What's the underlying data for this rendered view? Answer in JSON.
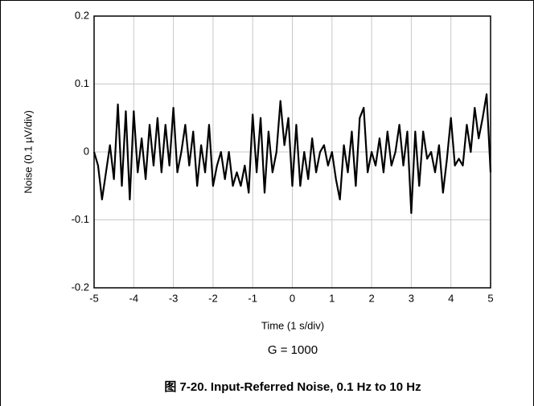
{
  "chart_data": {
    "type": "line",
    "x_label": "Time (1 s/div)",
    "y_label": "Noise (0.1 µV/div)",
    "annotation": "G = 1000",
    "caption": "图 7-20. Input-Referred Noise, 0.1 Hz to 10 Hz",
    "xlim": [
      -5,
      5
    ],
    "xticks": [
      -5,
      -4,
      -3,
      -2,
      -1,
      0,
      1,
      2,
      3,
      4,
      5
    ],
    "ylim": [
      -0.2,
      0.2
    ],
    "yticks": [
      -0.2,
      -0.1,
      0,
      0.1,
      0.2
    ],
    "grid": true,
    "x": [
      -5.0,
      -4.9,
      -4.8,
      -4.7,
      -4.6,
      -4.5,
      -4.4,
      -4.3,
      -4.2,
      -4.1,
      -4.0,
      -3.9,
      -3.8,
      -3.7,
      -3.6,
      -3.5,
      -3.4,
      -3.3,
      -3.2,
      -3.1,
      -3.0,
      -2.9,
      -2.8,
      -2.7,
      -2.6,
      -2.5,
      -2.4,
      -2.3,
      -2.2,
      -2.1,
      -2.0,
      -1.9,
      -1.8,
      -1.7,
      -1.6,
      -1.5,
      -1.4,
      -1.3,
      -1.2,
      -1.1,
      -1.0,
      -0.9,
      -0.8,
      -0.7,
      -0.6,
      -0.5,
      -0.4,
      -0.3,
      -0.2,
      -0.1,
      0.0,
      0.1,
      0.2,
      0.3,
      0.4,
      0.5,
      0.6,
      0.7,
      0.8,
      0.9,
      1.0,
      1.1,
      1.2,
      1.3,
      1.4,
      1.5,
      1.6,
      1.7,
      1.8,
      1.9,
      2.0,
      2.1,
      2.2,
      2.3,
      2.4,
      2.5,
      2.6,
      2.7,
      2.8,
      2.9,
      3.0,
      3.1,
      3.2,
      3.3,
      3.4,
      3.5,
      3.6,
      3.7,
      3.8,
      3.9,
      4.0,
      4.1,
      4.2,
      4.3,
      4.4,
      4.5,
      4.6,
      4.7,
      4.8,
      4.9,
      5.0
    ],
    "series": [
      {
        "color": "#000000",
        "values": [
          0.0,
          -0.02,
          -0.07,
          -0.03,
          0.01,
          -0.04,
          0.07,
          -0.05,
          0.06,
          -0.07,
          0.06,
          -0.03,
          0.02,
          -0.04,
          0.04,
          -0.02,
          0.05,
          -0.03,
          0.04,
          -0.02,
          0.065,
          -0.03,
          0.0,
          0.04,
          -0.02,
          0.03,
          -0.05,
          0.01,
          -0.03,
          0.04,
          -0.05,
          -0.02,
          0.0,
          -0.04,
          0.0,
          -0.05,
          -0.03,
          -0.05,
          -0.02,
          -0.06,
          0.055,
          -0.03,
          0.05,
          -0.06,
          0.03,
          -0.03,
          0.0,
          0.075,
          0.01,
          0.05,
          -0.05,
          0.04,
          -0.05,
          0.0,
          -0.04,
          0.02,
          -0.03,
          0.0,
          0.01,
          -0.02,
          0.0,
          -0.04,
          -0.07,
          0.01,
          -0.03,
          0.03,
          -0.05,
          0.05,
          0.065,
          -0.03,
          0.0,
          -0.02,
          0.02,
          -0.03,
          0.03,
          -0.02,
          0.0,
          0.04,
          -0.02,
          0.03,
          -0.09,
          0.03,
          -0.05,
          0.03,
          -0.01,
          0.0,
          -0.03,
          0.01,
          -0.06,
          -0.01,
          0.05,
          -0.02,
          -0.01,
          -0.02,
          0.04,
          0.0,
          0.065,
          0.02,
          0.05,
          0.085,
          -0.03
        ]
      }
    ]
  }
}
